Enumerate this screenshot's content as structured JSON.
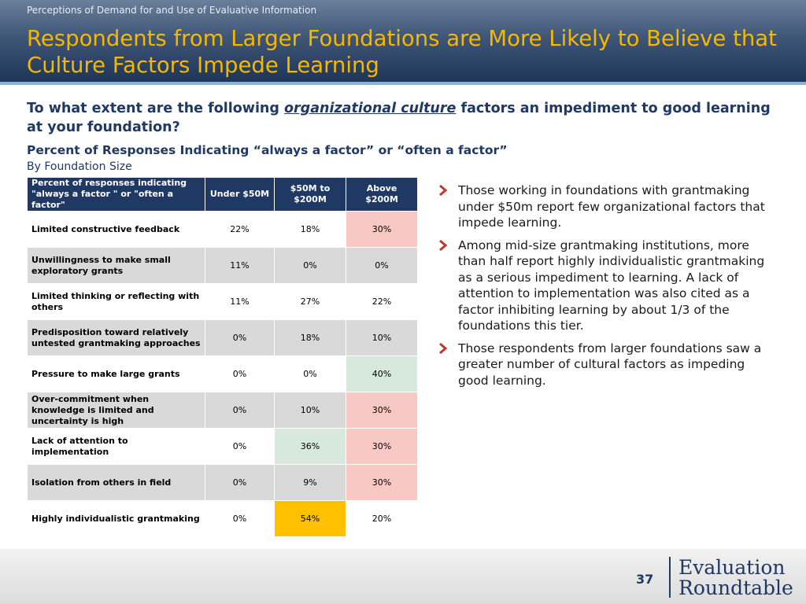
{
  "header": {
    "subtitle": "Perceptions of Demand for and Use of Evaluative Information",
    "title": "Respondents from Larger Foundations are More Likely to Believe that Culture Factors Impede Learning"
  },
  "question": {
    "prefix": "To what extent are the following ",
    "emphasis": "organizational culture",
    "suffix": " factors an impediment to good learning at your foundation?"
  },
  "subhead": "Percent of Responses Indicating “always a factor” or “often a factor”",
  "subhead2": "By Foundation Size",
  "table": {
    "headers": [
      "Percent of responses indicating \"always a factor \" or \"often a factor\"",
      "Under $50M",
      "$50M to $200M",
      "Above $200M"
    ],
    "rows": [
      {
        "label": "Limited constructive feedback",
        "values": [
          "22%",
          "18%",
          "30%"
        ],
        "highlight": [
          null,
          null,
          "pink"
        ]
      },
      {
        "label": "Unwillingness to make small exploratory grants",
        "values": [
          "11%",
          "0%",
          "0%"
        ],
        "highlight": [
          null,
          null,
          null
        ]
      },
      {
        "label": "Limited thinking or reflecting with others",
        "values": [
          "11%",
          "27%",
          "22%"
        ],
        "highlight": [
          null,
          null,
          null
        ]
      },
      {
        "label": "Predisposition toward relatively untested grantmaking approaches",
        "values": [
          "0%",
          "18%",
          "10%"
        ],
        "highlight": [
          null,
          null,
          null
        ]
      },
      {
        "label": "Pressure to make large grants",
        "values": [
          "0%",
          "0%",
          "40%"
        ],
        "highlight": [
          null,
          null,
          "green"
        ]
      },
      {
        "label": "Over-commitment when knowledge is limited and uncertainty is high",
        "values": [
          "0%",
          "10%",
          "30%"
        ],
        "highlight": [
          null,
          null,
          "pink"
        ]
      },
      {
        "label": "Lack of attention to implementation",
        "values": [
          "0%",
          "36%",
          "30%"
        ],
        "highlight": [
          null,
          "green",
          "pink"
        ]
      },
      {
        "label": "Isolation from others in field",
        "values": [
          "0%",
          "9%",
          "30%"
        ],
        "highlight": [
          null,
          null,
          "pink"
        ]
      },
      {
        "label": "Highly individualistic grantmaking",
        "values": [
          "0%",
          "54%",
          "20%"
        ],
        "highlight": [
          null,
          "yellow",
          null
        ]
      }
    ]
  },
  "bullets": [
    "Those working in foundations with grantmaking under $50m report few organizational factors that impede learning.",
    "Among mid-size grantmaking institutions, more than half report highly individualistic grantmaking as a serious impediment to learning.  A lack of attention to implementation was also cited as a factor inhibiting learning by about 1/3 of the foundations this tier.",
    "Those respondents from larger foundations saw a greater number of cultural factors as impeding good learning."
  ],
  "footer": {
    "page_number": "37",
    "logo_line1": "Evaluation",
    "logo_line2": "Roundtable"
  },
  "colors": {
    "title_gold": "#f5b800",
    "navy": "#1f3864",
    "pink": "#f8c8c4",
    "green": "#d6e9dc",
    "yellow": "#ffc000",
    "bullet_red": "#c0392b"
  }
}
